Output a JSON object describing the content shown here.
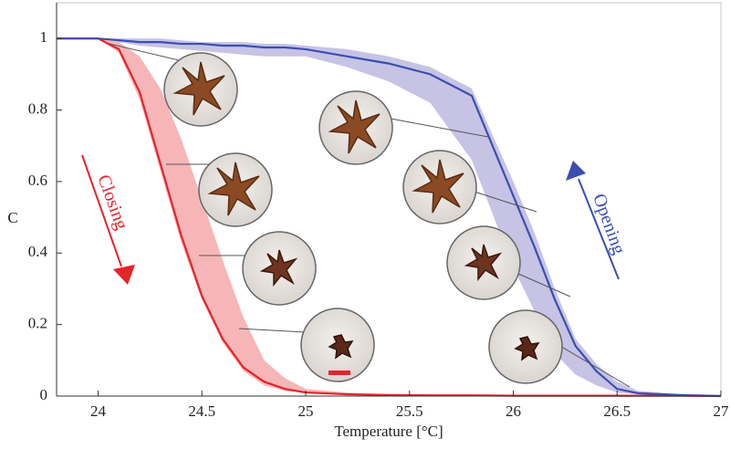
{
  "chart_data": {
    "type": "line",
    "x_label": "Temperature [°C]",
    "y_label": "C",
    "xlim": [
      23.8,
      27
    ],
    "ylim": [
      0,
      1.1
    ],
    "xticks": [
      24,
      24.5,
      25,
      25.5,
      26,
      26.5,
      27
    ],
    "yticks": [
      0,
      0.2,
      0.4,
      0.6,
      0.8,
      1
    ],
    "x": [
      23.8,
      24,
      24.1,
      24.2,
      24.3,
      24.4,
      24.5,
      24.6,
      24.7,
      24.8,
      24.9,
      25,
      25.2,
      25.4,
      25.6,
      25.8,
      26,
      26.1,
      26.2,
      26.3,
      26.4,
      26.5,
      26.6,
      26.8,
      27
    ],
    "series": [
      {
        "name": "Closing",
        "color": "#e5232b",
        "band_color": "#f5a9aa",
        "values": [
          1,
          1,
          0.97,
          0.85,
          0.65,
          0.45,
          0.28,
          0.16,
          0.08,
          0.04,
          0.02,
          0.01,
          0.005,
          0.003,
          0.002,
          0.002,
          0.001,
          0.001,
          0.001,
          0.001,
          0.001,
          0.001,
          0.001,
          0.001,
          0
        ],
        "lower": [
          1,
          1,
          0.96,
          0.83,
          0.63,
          0.43,
          0.27,
          0.15,
          0.07,
          0.03,
          0.015,
          0.008,
          0.004,
          0.002,
          0.001,
          0.001,
          0.001,
          0.001,
          0.001,
          0.001,
          0.001,
          0.001,
          0.001,
          0.001,
          0
        ],
        "upper": [
          1,
          1,
          0.99,
          0.95,
          0.86,
          0.72,
          0.55,
          0.38,
          0.22,
          0.1,
          0.05,
          0.02,
          0.01,
          0.005,
          0.003,
          0.002,
          0.002,
          0.002,
          0.002,
          0.002,
          0.002,
          0.002,
          0.002,
          0.002,
          0
        ]
      },
      {
        "name": "Opening",
        "color": "#3a4fb0",
        "band_color": "#bcb8e0",
        "values": [
          1,
          1,
          0.995,
          0.99,
          0.99,
          0.985,
          0.985,
          0.98,
          0.98,
          0.975,
          0.975,
          0.97,
          0.95,
          0.93,
          0.9,
          0.84,
          0.56,
          0.42,
          0.27,
          0.14,
          0.07,
          0.02,
          0.008,
          0.003,
          0
        ],
        "lower": [
          1,
          1,
          0.99,
          0.98,
          0.975,
          0.97,
          0.965,
          0.96,
          0.955,
          0.95,
          0.95,
          0.95,
          0.92,
          0.88,
          0.82,
          0.66,
          0.36,
          0.24,
          0.12,
          0.06,
          0.03,
          0.01,
          0.005,
          0.002,
          0
        ],
        "upper": [
          1,
          1,
          1,
          1,
          1,
          0.995,
          0.99,
          0.99,
          0.99,
          0.985,
          0.985,
          0.98,
          0.97,
          0.95,
          0.92,
          0.86,
          0.6,
          0.46,
          0.3,
          0.16,
          0.09,
          0.04,
          0.015,
          0.005,
          0
        ]
      }
    ]
  }
}
